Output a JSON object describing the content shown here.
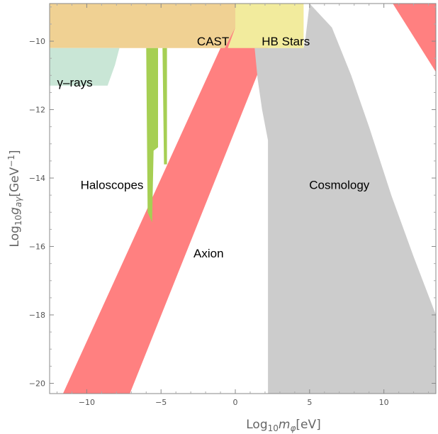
{
  "chart_data": {
    "type": "area",
    "title": "",
    "xlabel": {
      "main": "Log",
      "sub": "10",
      "sym": "m",
      "symsub": "φ",
      "unit": "[eV]"
    },
    "ylabel": {
      "main": "Log",
      "sub": "10",
      "sym": "g",
      "symsub": "aγ",
      "unit": "[GeV",
      "sup": "−1",
      "close": "]"
    },
    "xlim": [
      -12.5,
      13.5
    ],
    "ylim": [
      -20.3,
      -8.9
    ],
    "x_ticks": [
      -10,
      -5,
      0,
      5,
      10
    ],
    "x_tick_labels": [
      "−10",
      "−5",
      "0",
      "5",
      "10"
    ],
    "y_ticks": [
      -20,
      -18,
      -16,
      -14,
      -12,
      -10
    ],
    "y_tick_labels": [
      "−20",
      "−18",
      "−16",
      "−14",
      "−12",
      "−10"
    ],
    "grid": false,
    "regions": [
      {
        "name": "Axion",
        "label": "Axion",
        "color": "#ff8080",
        "label_at": [
          -1.8,
          -16.2
        ],
        "polygon": [
          [
            -11.6,
            -20.3
          ],
          [
            -7.1,
            -20.3
          ],
          [
            2.2,
            -10.2
          ],
          [
            2.2,
            -8.9
          ],
          [
            -1.0,
            -8.9
          ],
          [
            -1.0,
            -10.2
          ]
        ]
      },
      {
        "name": "Axion upper band",
        "label": "",
        "color": "#ff8080",
        "label_at": null,
        "polygon": [
          [
            10.6,
            -8.9
          ],
          [
            13.5,
            -8.9
          ],
          [
            13.5,
            -10.9
          ]
        ]
      },
      {
        "name": "Cosmology",
        "label": "Cosmology",
        "color": "#cccccc",
        "label_at": [
          7.0,
          -14.2
        ],
        "polygon": [
          [
            1.3,
            -10.2
          ],
          [
            1.5,
            -11.1
          ],
          [
            1.8,
            -12.0
          ],
          [
            2.2,
            -12.9
          ],
          [
            2.2,
            -20.3
          ],
          [
            13.5,
            -20.3
          ],
          [
            13.5,
            -18.0
          ],
          [
            12.0,
            -16.3
          ],
          [
            10.5,
            -14.5
          ],
          [
            9.0,
            -12.5
          ],
          [
            7.8,
            -11.0
          ],
          [
            6.5,
            -9.6
          ],
          [
            5.0,
            -8.9
          ],
          [
            4.7,
            -10.0
          ],
          [
            4.6,
            -10.2
          ]
        ]
      },
      {
        "name": "CAST",
        "label": "CAST",
        "color": "#f0d193",
        "label_at": [
          -1.5,
          -10.0
        ],
        "polygon": [
          [
            -12.5,
            -8.9
          ],
          [
            0.0,
            -8.9
          ],
          [
            0.0,
            -9.6
          ],
          [
            -0.7,
            -10.2
          ],
          [
            -12.5,
            -10.2
          ]
        ]
      },
      {
        "name": "HB Stars",
        "label": "HB Stars",
        "color": "#f2eb9d",
        "label_at": [
          3.4,
          -10.0
        ],
        "polygon": [
          [
            0.0,
            -8.9
          ],
          [
            4.6,
            -8.9
          ],
          [
            4.6,
            -10.2
          ],
          [
            -0.5,
            -10.2
          ],
          [
            0.0,
            -9.6
          ]
        ]
      },
      {
        "name": "γ-rays",
        "label": "γ–rays",
        "color": "#c9e6d6",
        "label_at": [
          -10.8,
          -11.2
        ],
        "polygon": [
          [
            -12.5,
            -10.2
          ],
          [
            -7.8,
            -10.2
          ],
          [
            -8.1,
            -10.7
          ],
          [
            -8.6,
            -11.3
          ],
          [
            -12.5,
            -11.3
          ]
        ]
      },
      {
        "name": "Haloscopes",
        "label": "Haloscopes",
        "color": "#a6cf53",
        "label_at": [
          -8.3,
          -14.2
        ],
        "polygon": [
          [
            -6.0,
            -10.2
          ],
          [
            -5.2,
            -10.2
          ],
          [
            -5.2,
            -13.1
          ],
          [
            -5.5,
            -13.2
          ],
          [
            -5.6,
            -15.3
          ],
          [
            -5.9,
            -15.0
          ]
        ]
      },
      {
        "name": "Haloscopes thin",
        "label": "",
        "color": "#a6cf53",
        "label_at": null,
        "polygon": [
          [
            -4.9,
            -10.2
          ],
          [
            -4.6,
            -10.2
          ],
          [
            -4.6,
            -13.6
          ],
          [
            -4.8,
            -13.6
          ]
        ]
      }
    ]
  }
}
